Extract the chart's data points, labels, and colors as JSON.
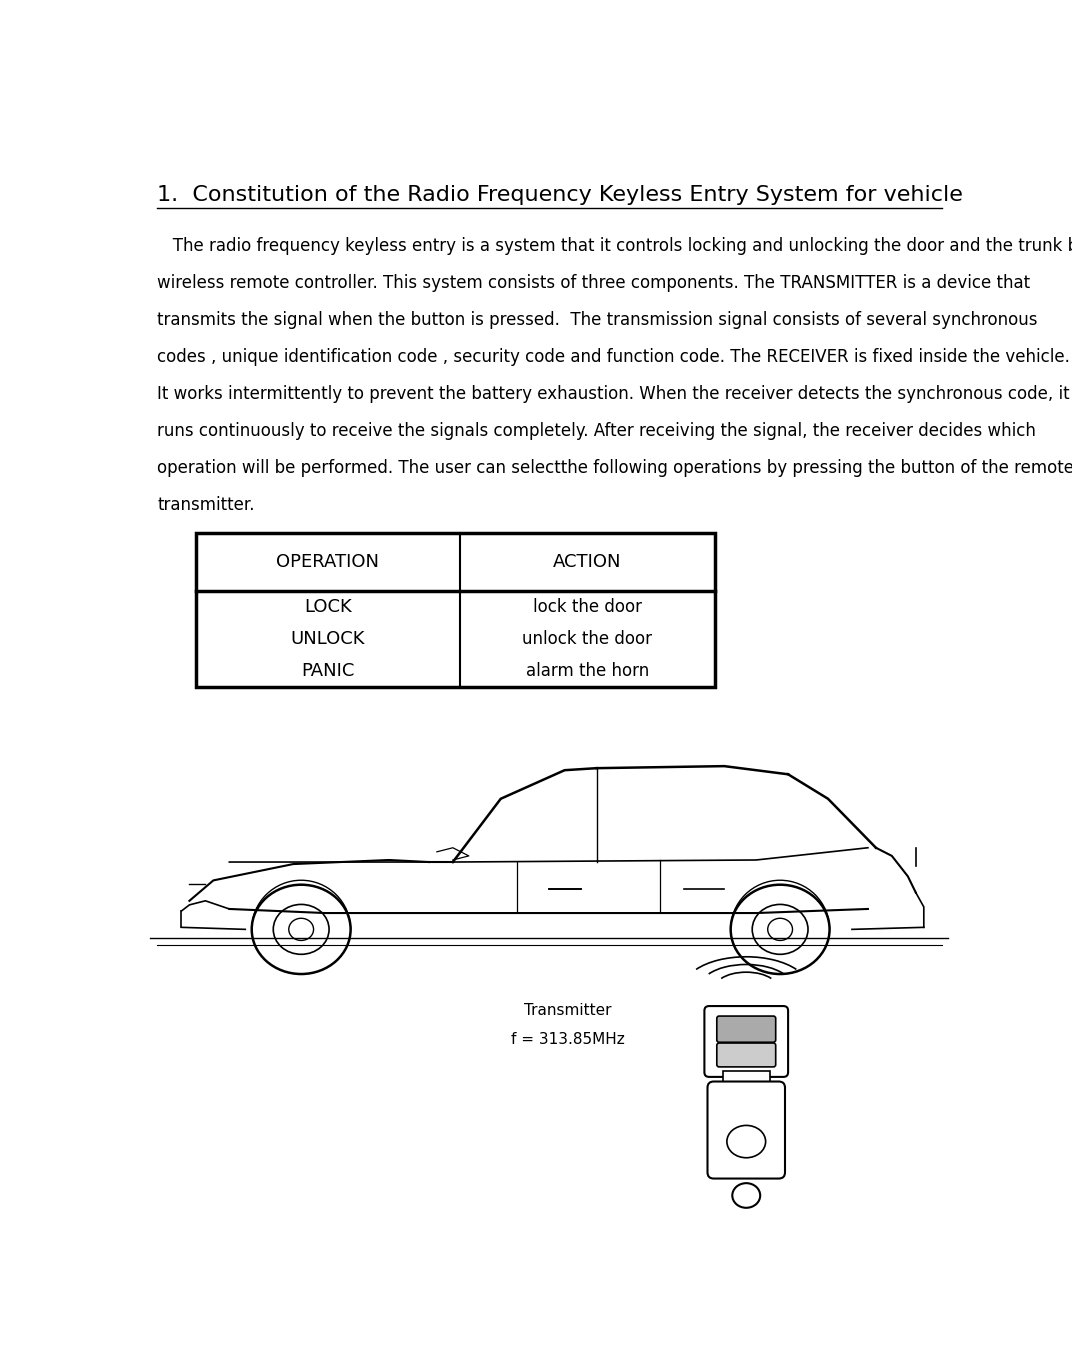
{
  "title": "1.  Constitution of the Radio Frequency Keyless Entry System for vehicle",
  "body_text": [
    "   The radio frequency keyless entry is a system that it controls locking and unlocking the door and the trunk by",
    "wireless remote controller. This system consists of three components. The TRANSMITTER is a device that",
    "transmits the signal when the button is pressed.  The transmission signal consists of several synchronous",
    "codes , unique identification code , security code and function code. The RECEIVER is fixed inside the vehicle.",
    "It works intermittently to prevent the battery exhaustion. When the receiver detects the synchronous code, it",
    "runs continuously to receive the signals completely. After receiving the signal, the receiver decides which",
    "operation will be performed. The user can selectthe following operations by pressing the button of the remote",
    "transmitter."
  ],
  "table_headers": [
    "OPERATION",
    "ACTION"
  ],
  "table_rows": [
    [
      "LOCK",
      "lock the door"
    ],
    [
      "UNLOCK",
      "unlock the door"
    ],
    [
      "PANIC",
      "alarm the horn"
    ]
  ],
  "transmitter_label": "Transmitter",
  "transmitter_freq": "f = 313.85MHz",
  "bg_color": "#ffffff",
  "text_color": "#000000",
  "title_fontsize": 16,
  "body_fontsize": 12,
  "table_header_fontsize": 13,
  "table_row_fontsize": 12
}
